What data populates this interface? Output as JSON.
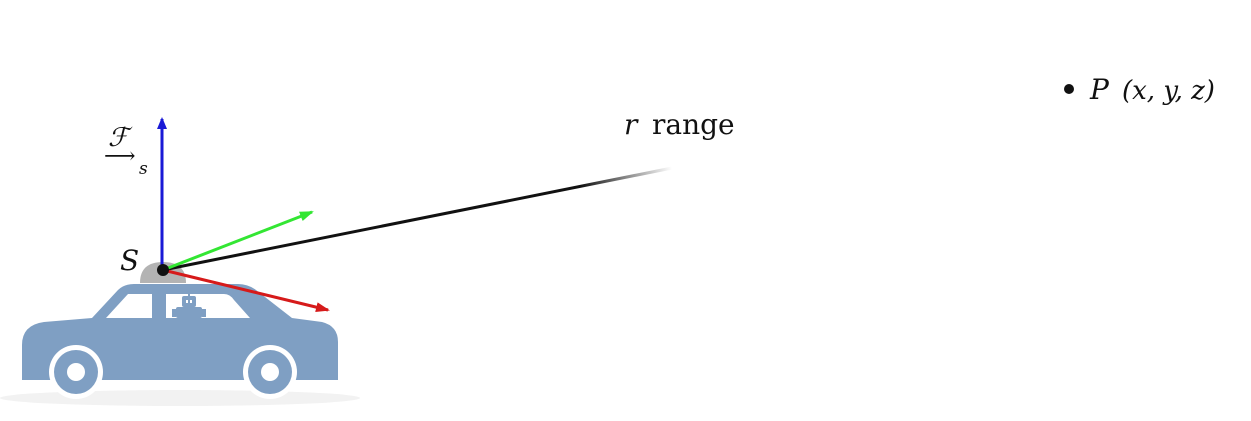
{
  "labels": {
    "frame_symbol": "ℱ",
    "frame_subscript": "s",
    "sensor_label": "S",
    "range_var": "r",
    "range_word": "range",
    "point_name": "P",
    "point_coords": "(x, y, z)"
  },
  "colors": {
    "z_axis": "#1a1ad6",
    "y_axis": "#33e633",
    "x_axis": "#d61a1a",
    "range_ray": "#111111",
    "car_body": "#7f9fc3",
    "car_window": "#ffffff",
    "sensor_dome": "#b3b3b3"
  },
  "icons": {
    "vehicle": "car-icon",
    "driver": "robot-icon"
  }
}
